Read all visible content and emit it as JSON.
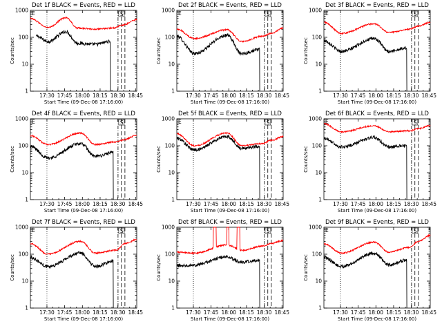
{
  "figure": {
    "ylabel": "Counts/sec",
    "xlabel": "Start Time (09-Dec-08 17:16:00)",
    "colors": {
      "events": "#000000",
      "lld": "#ff0000"
    }
  },
  "chart_data": [
    {
      "type": "line",
      "title": "Det 1f BLACK = Events, RED = LLD",
      "corner_label": "E",
      "marker_label": "S",
      "xlabel": "Start Time (09-Dec-08 17:16:00)",
      "ylabel": "Counts/sec",
      "yscale": "log",
      "ylim": [
        1,
        1000
      ],
      "xlim": [
        0,
        5400
      ],
      "x_ticks": [
        "17:30",
        "17:45",
        "18:00",
        "18:15",
        "18:30",
        "18:45"
      ],
      "y_ticks": [
        "1",
        "10",
        "100",
        "1000"
      ],
      "series": [
        {
          "name": "Events",
          "anchors": [
            [
              300,
              110
            ],
            [
              900,
              70
            ],
            [
              1800,
              160
            ],
            [
              2400,
              60
            ],
            [
              3300,
              55
            ],
            [
              4050,
              70
            ]
          ]
        },
        {
          "name": "LLD",
          "anchors": [
            [
              0,
              500
            ],
            [
              900,
              230
            ],
            [
              1800,
              540
            ],
            [
              2400,
              220
            ],
            [
              3300,
              200
            ],
            [
              4200,
              220
            ],
            [
              4650,
              280
            ],
            [
              5400,
              450
            ]
          ]
        }
      ]
    },
    {
      "type": "line",
      "title": "Det 2f BLACK = Events, RED = LLD",
      "corner_label": "E",
      "marker_label": "S",
      "xlabel": "Start Time (09-Dec-08 17:16:00)",
      "ylabel": "Counts/sec",
      "yscale": "log",
      "ylim": [
        1,
        1000
      ],
      "xlim": [
        0,
        5400
      ],
      "x_ticks": [
        "17:30",
        "17:45",
        "18:00",
        "18:15",
        "18:30",
        "18:45"
      ],
      "y_ticks": [
        "1",
        "10",
        "100",
        "1000"
      ],
      "series": [
        {
          "name": "Events",
          "anchors": [
            [
              0,
              110
            ],
            [
              900,
              25
            ],
            [
              2550,
              120
            ],
            [
              3300,
              25
            ],
            [
              4200,
              35
            ]
          ]
        },
        {
          "name": "LLD",
          "anchors": [
            [
              0,
              200
            ],
            [
              900,
              90
            ],
            [
              2550,
              190
            ],
            [
              3300,
              70
            ],
            [
              4350,
              110
            ],
            [
              4800,
              140
            ],
            [
              5400,
              220
            ]
          ]
        }
      ]
    },
    {
      "type": "line",
      "title": "Det 3f BLACK = Events, RED = LLD",
      "corner_label": "E",
      "marker_label": "S",
      "xlabel": "Start Time (09-Dec-08 17:16:00)",
      "ylabel": "Counts/sec",
      "yscale": "log",
      "ylim": [
        1,
        1000
      ],
      "xlim": [
        0,
        5400
      ],
      "x_ticks": [
        "17:30",
        "17:45",
        "18:00",
        "18:15",
        "18:30",
        "18:45"
      ],
      "y_ticks": [
        "1",
        "10",
        "100",
        "1000"
      ],
      "series": [
        {
          "name": "Events",
          "anchors": [
            [
              0,
              75
            ],
            [
              900,
              30
            ],
            [
              2550,
              90
            ],
            [
              3300,
              30
            ],
            [
              4200,
              40
            ]
          ]
        },
        {
          "name": "LLD",
          "anchors": [
            [
              0,
              360
            ],
            [
              900,
              140
            ],
            [
              2550,
              320
            ],
            [
              3300,
              150
            ],
            [
              4350,
              200
            ],
            [
              4800,
              260
            ],
            [
              5400,
              360
            ]
          ]
        }
      ]
    },
    {
      "type": "line",
      "title": "Det 4f BLACK = Events, RED = LLD",
      "corner_label": "E",
      "marker_label": "S",
      "xlabel": "Start Time (09-Dec-08 17:16:00)",
      "ylabel": "Counts/sec",
      "yscale": "log",
      "ylim": [
        1,
        1000
      ],
      "xlim": [
        0,
        5400
      ],
      "x_ticks": [
        "17:30",
        "17:45",
        "18:00",
        "18:15",
        "18:30",
        "18:45"
      ],
      "y_ticks": [
        "1",
        "10",
        "100",
        "1000"
      ],
      "series": [
        {
          "name": "Events",
          "anchors": [
            [
              0,
              95
            ],
            [
              900,
              35
            ],
            [
              2550,
              120
            ],
            [
              3300,
              40
            ],
            [
              4200,
              55
            ]
          ]
        },
        {
          "name": "LLD",
          "anchors": [
            [
              0,
              240
            ],
            [
              900,
              110
            ],
            [
              2550,
              300
            ],
            [
              3300,
              110
            ],
            [
              4350,
              140
            ],
            [
              4800,
              170
            ],
            [
              5400,
              250
            ]
          ]
        }
      ]
    },
    {
      "type": "line",
      "title": "Det 5f BLACK = Events, RED = LLD",
      "corner_label": "E",
      "marker_label": "S",
      "xlabel": "Start Time (09-Dec-08 17:16:00)",
      "ylabel": "Counts/sec",
      "yscale": "log",
      "ylim": [
        1,
        1000
      ],
      "xlim": [
        0,
        5400
      ],
      "x_ticks": [
        "17:30",
        "17:45",
        "18:00",
        "18:15",
        "18:30",
        "18:45"
      ],
      "y_ticks": [
        "1",
        "10",
        "100",
        "1000"
      ],
      "series": [
        {
          "name": "Events",
          "anchors": [
            [
              0,
              190
            ],
            [
              900,
              70
            ],
            [
              2550,
              220
            ],
            [
              3300,
              80
            ],
            [
              4200,
              95
            ]
          ]
        },
        {
          "name": "LLD",
          "anchors": [
            [
              0,
              280
            ],
            [
              900,
              100
            ],
            [
              2550,
              300
            ],
            [
              3300,
              100
            ],
            [
              4350,
              120
            ],
            [
              4800,
              160
            ],
            [
              5400,
              220
            ]
          ]
        }
      ]
    },
    {
      "type": "line",
      "title": "Det 6f BLACK = Events, RED = LLD",
      "corner_label": "E",
      "marker_label": "S",
      "xlabel": "Start Time (09-Dec-08 17:16:00)",
      "ylabel": "Counts/sec",
      "yscale": "log",
      "ylim": [
        1,
        1000
      ],
      "xlim": [
        0,
        5400
      ],
      "x_ticks": [
        "17:30",
        "17:45",
        "18:00",
        "18:15",
        "18:30",
        "18:45"
      ],
      "y_ticks": [
        "1",
        "10",
        "100",
        "1000"
      ],
      "series": [
        {
          "name": "Events",
          "anchors": [
            [
              0,
              190
            ],
            [
              900,
              90
            ],
            [
              2550,
              200
            ],
            [
              3300,
              90
            ],
            [
              4200,
              100
            ]
          ]
        },
        {
          "name": "LLD",
          "anchors": [
            [
              0,
              650
            ],
            [
              900,
              330
            ],
            [
              2550,
              550
            ],
            [
              3300,
              330
            ],
            [
              4350,
              360
            ],
            [
              4800,
              430
            ],
            [
              5400,
              560
            ]
          ]
        }
      ]
    },
    {
      "type": "line",
      "title": "Det 7f BLACK = Events, RED = LLD",
      "corner_label": "E",
      "marker_label": "S",
      "xlabel": "Start Time (09-Dec-08 17:16:00)",
      "ylabel": "Counts/sec",
      "yscale": "log",
      "ylim": [
        1,
        1000
      ],
      "xlim": [
        0,
        5400
      ],
      "x_ticks": [
        "17:30",
        "17:45",
        "18:00",
        "18:15",
        "18:30",
        "18:45"
      ],
      "y_ticks": [
        "1",
        "10",
        "100",
        "1000"
      ],
      "series": [
        {
          "name": "Events",
          "anchors": [
            [
              0,
              75
            ],
            [
              900,
              35
            ],
            [
              2550,
              110
            ],
            [
              3300,
              35
            ],
            [
              4200,
              55
            ]
          ]
        },
        {
          "name": "LLD",
          "anchors": [
            [
              0,
              250
            ],
            [
              900,
              100
            ],
            [
              2550,
              300
            ],
            [
              3300,
              110
            ],
            [
              4350,
              140
            ],
            [
              4800,
              250
            ],
            [
              5400,
              350
            ]
          ]
        }
      ]
    },
    {
      "type": "line",
      "title": "Det 8f BLACK = Events, RED = LLD",
      "corner_label": "E",
      "marker_label": "S",
      "xlabel": "Start Time (09-Dec-08 17:16:00)",
      "ylabel": "Counts/sec",
      "yscale": "log",
      "ylim": [
        1,
        1000
      ],
      "xlim": [
        0,
        5400
      ],
      "x_ticks": [
        "17:30",
        "17:45",
        "18:00",
        "18:15",
        "18:30",
        "18:45"
      ],
      "y_ticks": [
        "1",
        "10",
        "100",
        "1000"
      ],
      "series": [
        {
          "name": "Events",
          "anchors": [
            [
              0,
              38
            ],
            [
              900,
              40
            ],
            [
              2550,
              80
            ],
            [
              3300,
              50
            ],
            [
              4200,
              60
            ]
          ]
        },
        {
          "name": "LLD",
          "anchors": [
            [
              0,
              120
            ],
            [
              900,
              110
            ],
            [
              2550,
              220
            ],
            [
              3300,
              140
            ],
            [
              4350,
              200
            ],
            [
              4800,
              250
            ],
            [
              5400,
              320
            ]
          ],
          "spikes": [
            [
              1850,
              2000,
              1000
            ],
            [
              2550,
              2650,
              1000
            ],
            [
              3050,
              3200,
              1000
            ]
          ]
        }
      ]
    },
    {
      "type": "line",
      "title": "Det 9f BLACK = Events, RED = LLD",
      "corner_label": "E",
      "marker_label": "S",
      "xlabel": "Start Time (09-Dec-08 17:16:00)",
      "ylabel": "Counts/sec",
      "yscale": "log",
      "ylim": [
        1,
        1000
      ],
      "xlim": [
        0,
        5400
      ],
      "x_ticks": [
        "17:30",
        "17:45",
        "18:00",
        "18:15",
        "18:30",
        "18:45"
      ],
      "y_ticks": [
        "1",
        "10",
        "100",
        "1000"
      ],
      "series": [
        {
          "name": "Events",
          "anchors": [
            [
              0,
              75
            ],
            [
              900,
              35
            ],
            [
              2550,
              110
            ],
            [
              3300,
              40
            ],
            [
              4200,
              60
            ]
          ]
        },
        {
          "name": "LLD",
          "anchors": [
            [
              0,
              240
            ],
            [
              900,
              110
            ],
            [
              2550,
              280
            ],
            [
              3300,
              120
            ],
            [
              4350,
              180
            ],
            [
              4800,
              300
            ],
            [
              5400,
              500
            ]
          ]
        }
      ]
    }
  ]
}
